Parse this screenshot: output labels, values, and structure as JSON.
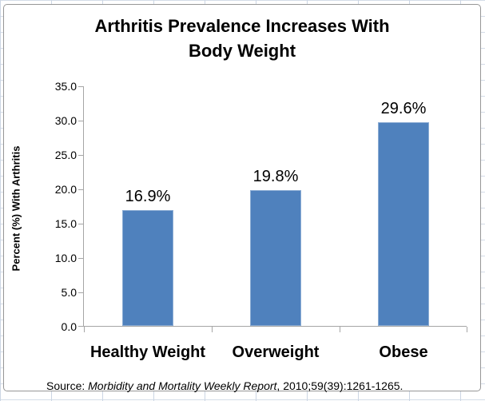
{
  "chart_data": {
    "type": "bar",
    "title": "Arthritis Prevalence Increases With Body Weight",
    "title_lines": [
      "Arthritis Prevalence Increases With",
      "Body Weight"
    ],
    "categories": [
      "Healthy Weight",
      "Overweight",
      "Obese"
    ],
    "values": [
      16.9,
      19.8,
      29.6
    ],
    "bar_labels": [
      "16.9%",
      "19.8%",
      "29.6%"
    ],
    "xlabel": "",
    "ylabel": "Percent (%) With Arthritis",
    "ylim": [
      0,
      35
    ],
    "y_tick_step": 5,
    "y_ticks": [
      "35.0",
      "30.0",
      "25.0",
      "20.0",
      "15.0",
      "10.0",
      "5.0",
      "0.0"
    ],
    "grid": false,
    "legend": false,
    "bar_color": "#4f81bd",
    "axis_color": "#a6a6a6"
  },
  "source": {
    "prefix": "Source: ",
    "italic": "Morbidity and Mortality Weekly Report",
    "suffix": ", 2010;59(39):1261-1265."
  }
}
